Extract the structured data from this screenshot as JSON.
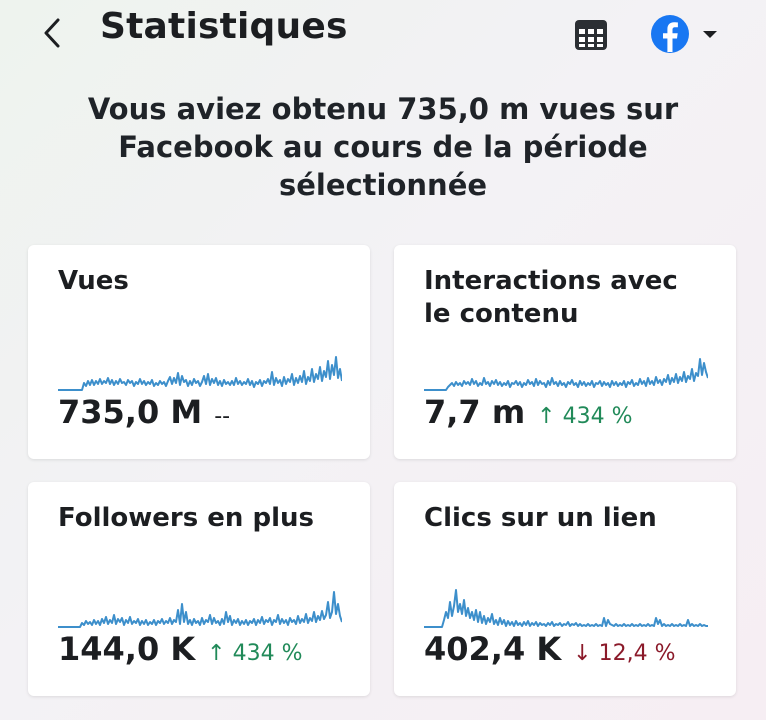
{
  "header": {
    "title": "Statistiques"
  },
  "headline": "Vous aviez obtenu 735,0 m vues sur Facebook au cours de la période sélectionnée",
  "colors": {
    "accent": "#1877f2",
    "sparkline": "#3d8fcb",
    "positive": "#218a59",
    "negative": "#8b1a2a"
  },
  "cards": [
    {
      "title": "Vues",
      "value": "735,0 M",
      "arrow": "",
      "change": "--",
      "trend": "none"
    },
    {
      "title": "Interactions avec le contenu",
      "value": "7,7 m",
      "arrow": "↑",
      "change": "434 %",
      "trend": "up"
    },
    {
      "title": "Followers en plus",
      "value": "144,0 K",
      "arrow": "↑",
      "change": "434 %",
      "trend": "up"
    },
    {
      "title": "Clics sur un lien",
      "value": "402,4 K",
      "arrow": "↓",
      "change": "12,4 %",
      "trend": "down"
    }
  ]
}
